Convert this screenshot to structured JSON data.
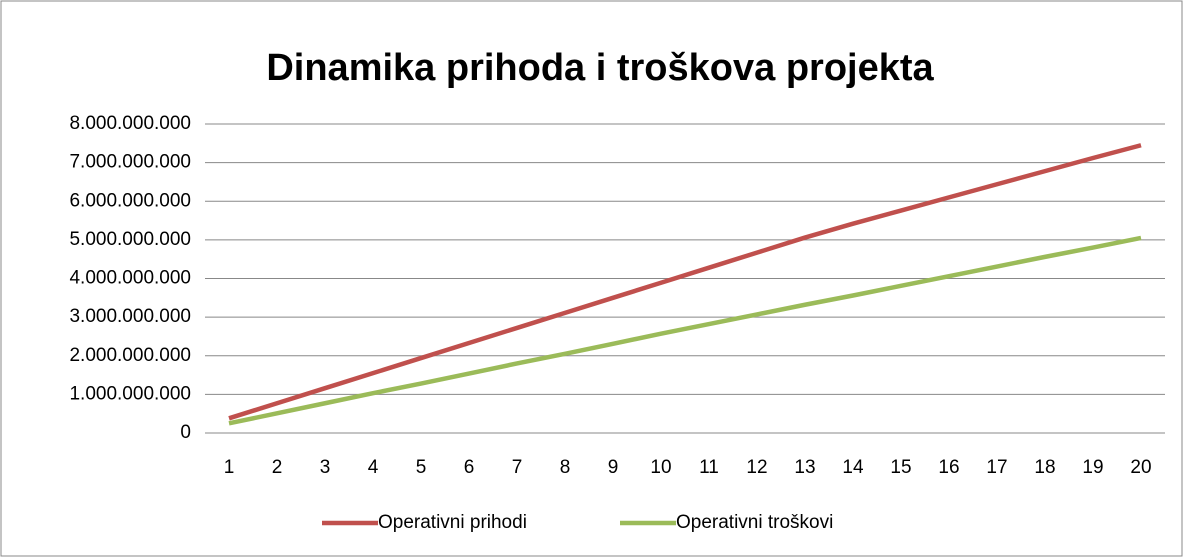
{
  "chart_data": {
    "type": "line",
    "title": "Dinamika prihoda i troškova projekta",
    "categories": [
      "1",
      "2",
      "3",
      "4",
      "5",
      "6",
      "7",
      "8",
      "9",
      "10",
      "11",
      "12",
      "13",
      "14",
      "15",
      "16",
      "17",
      "18",
      "19",
      "20"
    ],
    "series": [
      {
        "name": "Operativni prihodi",
        "color": "#c0504d",
        "values": [
          380000000,
          770000000,
          1160000000,
          1550000000,
          1940000000,
          2330000000,
          2720000000,
          3110000000,
          3500000000,
          3890000000,
          4280000000,
          4670000000,
          5060000000,
          5420000000,
          5760000000,
          6100000000,
          6440000000,
          6780000000,
          7120000000,
          7450000000
        ]
      },
      {
        "name": "Operativni troškovi",
        "color": "#9bbb59",
        "values": [
          250000000,
          510000000,
          770000000,
          1030000000,
          1280000000,
          1540000000,
          1800000000,
          2050000000,
          2310000000,
          2570000000,
          2820000000,
          3070000000,
          3320000000,
          3560000000,
          3810000000,
          4060000000,
          4310000000,
          4560000000,
          4800000000,
          5050000000
        ]
      }
    ],
    "ylim": [
      0,
      8000000000
    ],
    "yticks": [
      0,
      {
        "value": 1000000000,
        "label": "1.000.000.000"
      },
      {
        "value": 2000000000,
        "label": "2.000.000.000"
      },
      {
        "value": 3000000000,
        "label": "3.000.000.000"
      },
      {
        "value": 4000000000,
        "label": "4.000.000.000"
      },
      {
        "value": 5000000000,
        "label": "5.000.000.000"
      },
      {
        "value": 6000000000,
        "label": "6.000.000.000"
      },
      {
        "value": 7000000000,
        "label": "7.000.000.000"
      },
      {
        "value": 8000000000,
        "label": "8.000.000.000"
      }
    ],
    "grid": true,
    "legend": "bottom"
  }
}
